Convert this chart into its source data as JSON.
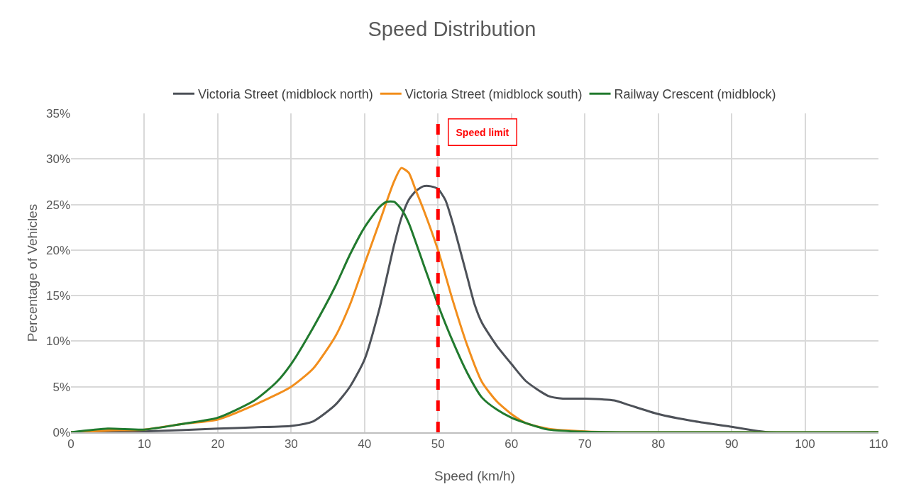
{
  "chart_data": {
    "type": "line",
    "title": "Speed Distribution",
    "xlabel": "Speed (km/h)",
    "ylabel": "Percentage of Vehicles",
    "xlim": [
      0,
      110
    ],
    "xticks": [
      0,
      10,
      20,
      30,
      40,
      50,
      60,
      70,
      80,
      90,
      100,
      110
    ],
    "ylim": [
      0,
      35
    ],
    "yticks": [
      {
        "value": 0,
        "label": "0%"
      },
      {
        "value": 5,
        "label": "5%"
      },
      {
        "value": 10,
        "label": "10%"
      },
      {
        "value": 15,
        "label": "15%"
      },
      {
        "value": 20,
        "label": "20%"
      },
      {
        "value": 25,
        "label": "25%"
      },
      {
        "value": 30,
        "label": "30%"
      },
      {
        "value": 35,
        "label": "35%"
      }
    ],
    "grid": true,
    "legend": "top",
    "marker": "none",
    "line_style": "solid",
    "series": [
      {
        "name": "Victoria Street (midblock north)",
        "color": "#4d5158",
        "x": [
          0,
          10,
          20,
          25,
          30,
          33,
          36,
          38,
          40,
          42,
          44,
          45,
          46,
          47,
          48,
          49,
          50,
          51,
          52,
          54,
          55,
          56,
          58,
          60,
          62,
          65,
          67,
          70,
          74,
          76,
          80,
          85,
          90,
          95,
          110
        ],
        "values": [
          0,
          0.1,
          0.4,
          0.55,
          0.7,
          1.2,
          3,
          5,
          8,
          13.5,
          20.5,
          23.5,
          25.5,
          26.5,
          27,
          27,
          26.7,
          25.5,
          23,
          17,
          14,
          12,
          9.5,
          7.5,
          5.6,
          4,
          3.7,
          3.7,
          3.5,
          3,
          2,
          1.2,
          0.6,
          0,
          0
        ]
      },
      {
        "name": "Victoria Street (midblock south)",
        "color": "#f28e1c",
        "x": [
          0,
          5,
          10,
          15,
          20,
          25,
          30,
          33,
          36,
          38,
          40,
          42,
          44,
          45,
          46,
          47,
          48,
          50,
          52,
          54,
          56,
          58,
          60,
          62,
          65,
          70,
          75,
          110
        ],
        "values": [
          0,
          0.2,
          0.3,
          0.9,
          1.4,
          3,
          5,
          7,
          10.5,
          14,
          18.5,
          23,
          27.5,
          29,
          28.5,
          26.5,
          24.5,
          20,
          14.5,
          9.5,
          5.5,
          3.4,
          2,
          1,
          0.4,
          0.1,
          0,
          0
        ]
      },
      {
        "name": "Railway Crescent (midblock)",
        "color": "#217a2e",
        "x": [
          0,
          5,
          10,
          15,
          20,
          25,
          28,
          30,
          33,
          36,
          38,
          40,
          42,
          43,
          44,
          45,
          46,
          48,
          50,
          52,
          54,
          56,
          58,
          60,
          62,
          65,
          70,
          75,
          110
        ],
        "values": [
          0,
          0.4,
          0.3,
          0.9,
          1.6,
          3.5,
          5.5,
          7.5,
          11.5,
          16,
          19.5,
          22.5,
          24.7,
          25.3,
          25.3,
          24.5,
          23,
          18.5,
          14,
          10,
          6.5,
          3.8,
          2.5,
          1.6,
          1,
          0.3,
          0.05,
          0,
          0
        ]
      }
    ],
    "ref_lines": [
      {
        "axis": "x",
        "value": 50,
        "label": "Speed limit",
        "color": "#ff0000",
        "line_style": "dashed"
      }
    ]
  }
}
